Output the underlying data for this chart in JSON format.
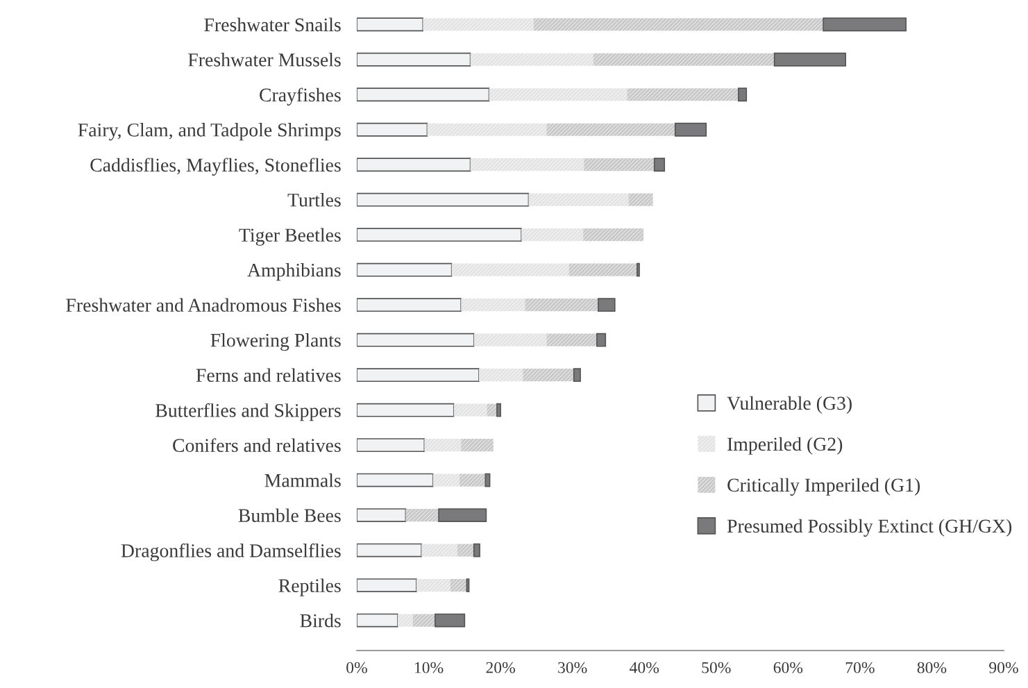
{
  "chart_data": {
    "type": "bar",
    "orientation": "horizontal",
    "stacked": true,
    "categories": [
      "Freshwater Snails",
      "Freshwater Mussels",
      "Crayfishes",
      "Fairy, Clam, and Tadpole Shrimps",
      "Caddisflies, Mayflies, Stoneflies",
      "Turtles",
      "Tiger Beetles",
      "Amphibians",
      "Freshwater and Anadromous Fishes",
      "Flowering Plants",
      "Ferns and relatives",
      "Butterflies and Skippers",
      "Conifers and relatives",
      "Mammals",
      "Bumble Bees",
      "Dragonflies and Damselflies",
      "Reptiles",
      "Birds"
    ],
    "series": [
      {
        "name": "Vulnerable (G3)",
        "color": "#f1f2f3",
        "values": [
          9.2,
          15.8,
          18.4,
          9.8,
          15.8,
          23.9,
          22.9,
          13.2,
          14.5,
          16.3,
          17.0,
          13.5,
          9.4,
          10.6,
          6.8,
          9.0,
          8.3,
          5.7
        ]
      },
      {
        "name": "Imperiled (G2)",
        "color": "#e4e4e4",
        "values": [
          15.4,
          17.1,
          19.2,
          16.6,
          15.8,
          13.9,
          8.6,
          16.3,
          8.9,
          10.1,
          6.1,
          4.6,
          5.1,
          3.7,
          0,
          5.0,
          4.7,
          2.1
        ]
      },
      {
        "name": "Critically Imperiled (G1)",
        "color": "#c9c9c9",
        "values": [
          40.3,
          25.2,
          15.5,
          17.9,
          9.8,
          3.4,
          8.4,
          9.5,
          10.2,
          7.0,
          7.1,
          1.4,
          4.5,
          3.6,
          4.6,
          2.3,
          2.3,
          3.1
        ]
      },
      {
        "name": "Presumed Possibly Extinct (GH/GX)",
        "color": "#7a7a7c",
        "values": [
          11.5,
          9.9,
          1.1,
          4.3,
          1.4,
          0,
          0,
          0.3,
          2.3,
          1.2,
          0.9,
          0.5,
          0,
          0.6,
          6.6,
          0.8,
          0.3,
          4.1
        ]
      }
    ],
    "xlim": [
      0,
      90
    ],
    "xticks": [
      {
        "value": 0,
        "label": "0%"
      },
      {
        "value": 10,
        "label": "10%"
      },
      {
        "value": 20,
        "label": "20%"
      },
      {
        "value": 30,
        "label": "30%"
      },
      {
        "value": 40,
        "label": "40%"
      },
      {
        "value": 50,
        "label": "50%"
      },
      {
        "value": 60,
        "label": "60%"
      },
      {
        "value": 70,
        "label": "70%"
      },
      {
        "value": 80,
        "label": "80%"
      },
      {
        "value": 90,
        "label": "90%"
      }
    ],
    "legend": "right",
    "grid": false
  }
}
